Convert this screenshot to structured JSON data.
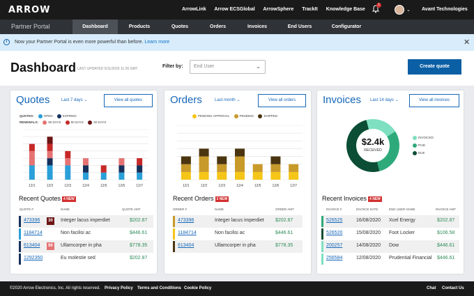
{
  "topbar": {
    "logo": "ARROW",
    "links": [
      "ArrowLink",
      "Arrow ECSGlobal",
      "ArrowSphere",
      "TrackIt",
      "Knowledge Base"
    ],
    "notification_count": "1",
    "company": "Avant Technologies"
  },
  "nav": {
    "portal_title": "Partner Portal",
    "tabs": [
      "Dashboard",
      "Products",
      "Quotes",
      "Orders",
      "Invoices",
      "End Users",
      "Configurator"
    ],
    "active": "Dashboard"
  },
  "banner": {
    "text": "Now your Partner Portal is even more powerful than before.",
    "link": "Learn more"
  },
  "header": {
    "title": "Dashboard",
    "updated": "LAST UPDATED 5/11/2020 11:36 GMT",
    "filter_label": "Filter by:",
    "filter_placeholder": "End User",
    "create_button": "Create quote"
  },
  "quotes": {
    "title": "Quotes",
    "period": "Last 7 days",
    "view_all": "View all quotes",
    "legend_quotes_label": "QUOTES:",
    "legend_quotes": [
      "OPEN",
      "EXPIRED"
    ],
    "legend_renewals_label": "RENEWALS:",
    "legend_renewals": [
      "90 DAYS",
      "60 DAYS",
      "30 DAYS"
    ],
    "recent_title": "Recent Quotes",
    "new_count": "4 NEW",
    "headers": [
      "QUOTE #",
      "NAME",
      "QUOTE AMT"
    ],
    "rows": [
      {
        "num": "473396",
        "badge": "30",
        "name": "Integer lacus imperdiet",
        "amt": "$202.87"
      },
      {
        "num": "1184714",
        "badge": "",
        "name": "Non facilisi ac",
        "amt": "$446.61"
      },
      {
        "num": "613404",
        "badge": "90",
        "name": "Ullamcorper in pha",
        "amt": "$778.35"
      },
      {
        "num": "1292350",
        "badge": "",
        "name": "Eu molestie sed",
        "amt": "$202.87"
      }
    ]
  },
  "orders": {
    "title": "Orders",
    "period": "Last  month",
    "view_all": "View all orders",
    "legend": [
      "PENDING APPROVAL",
      "PENDING",
      "SHIPPED"
    ],
    "recent_title": "Recent Orders",
    "new_count": "3 NEW",
    "headers": [
      "ORDER #",
      "NAME",
      "ORDER AMT"
    ],
    "rows": [
      {
        "num": "473396",
        "name": "Integer lacus imperdiet",
        "amt": "$202.87"
      },
      {
        "num": "1184714",
        "name": "Non facilisi ac",
        "amt": "$446.61"
      },
      {
        "num": "613404",
        "name": "Ullamcorper in pha",
        "amt": "$778.35"
      }
    ]
  },
  "invoices": {
    "title": "Invoices",
    "period": "Last 14 days",
    "view_all": "View all invoices",
    "donut_value": "$2.4k",
    "donut_label": "RECEIVED",
    "legend": [
      "INVOICED",
      "PAID",
      "DUE"
    ],
    "recent_title": "Recent Invoices",
    "new_count": "4 NEW",
    "headers": [
      "INVOICE #",
      "INVOICE DATE",
      "END USER NAME",
      "INVOICE AMT"
    ],
    "rows": [
      {
        "num": "526525",
        "date": "16/08/2020",
        "name": "Xcel Energy",
        "amt": "$202.87"
      },
      {
        "num": "526520",
        "date": "15/08/2020",
        "name": "Foot Locker",
        "amt": "$106.58"
      },
      {
        "num": "200257",
        "date": "14/08/2020",
        "name": "Dow",
        "amt": "$446.61"
      },
      {
        "num": "256584",
        "date": "12/08/2020",
        "name": "Prudential Financial",
        "amt": "$446.61"
      }
    ]
  },
  "footer": {
    "copyright": "©2020 Arrow Electronics, Inc. All rights reserved.",
    "links": [
      "Privacy Policy",
      "Terms and Conditions",
      "Cookie Policy"
    ],
    "right_links": [
      "Chat",
      "Contact Us"
    ]
  },
  "colors": {
    "brand_blue": "#0b5fa5",
    "open": "#2a9fd8",
    "expired": "#16305c",
    "r90": "#e57373",
    "r60": "#c62828",
    "r30": "#6d1414",
    "pending_approval": "#f5c518",
    "pending": "#c89a2a",
    "shipped": "#4a3510",
    "invoiced": "#7ee0c0",
    "paid": "#2eaa7a",
    "due": "#0b4d35"
  },
  "chart_data": [
    {
      "type": "bar",
      "title": "Quotes",
      "categories": [
        "12/1",
        "12/2",
        "12/3",
        "12/4",
        "12/5",
        "12/6",
        "12/7"
      ],
      "ylim": [
        0,
        7
      ],
      "series": [
        {
          "name": "OPEN",
          "values": [
            2,
            2,
            2,
            1,
            1,
            1,
            1
          ]
        },
        {
          "name": "EXPIRED",
          "values": [
            0,
            1,
            0,
            1,
            0,
            1,
            1
          ]
        },
        {
          "name": "90 DAYS",
          "values": [
            2,
            1,
            1,
            1,
            0,
            1,
            0
          ]
        },
        {
          "name": "60 DAYS",
          "values": [
            1,
            1,
            1,
            0,
            1,
            0,
            1
          ]
        },
        {
          "name": "30 DAYS",
          "values": [
            0,
            1,
            0,
            0,
            0,
            0,
            0
          ]
        }
      ]
    },
    {
      "type": "bar",
      "title": "Orders",
      "categories": [
        "12/1",
        "12/2",
        "12/3",
        "12/4",
        "12/5",
        "12/6",
        "12/7"
      ],
      "ylim": [
        0,
        7
      ],
      "series": [
        {
          "name": "PENDING APPROVAL",
          "values": [
            1,
            1,
            1,
            1,
            1,
            1,
            1
          ]
        },
        {
          "name": "PENDING",
          "values": [
            1,
            2,
            1,
            2,
            1,
            1,
            1
          ]
        },
        {
          "name": "SHIPPED",
          "values": [
            1,
            1,
            1,
            1,
            0,
            1,
            0
          ]
        }
      ]
    },
    {
      "type": "pie",
      "title": "Invoices",
      "categories": [
        "INVOICED",
        "PAID",
        "DUE"
      ],
      "values": [
        20,
        30,
        50
      ]
    }
  ]
}
